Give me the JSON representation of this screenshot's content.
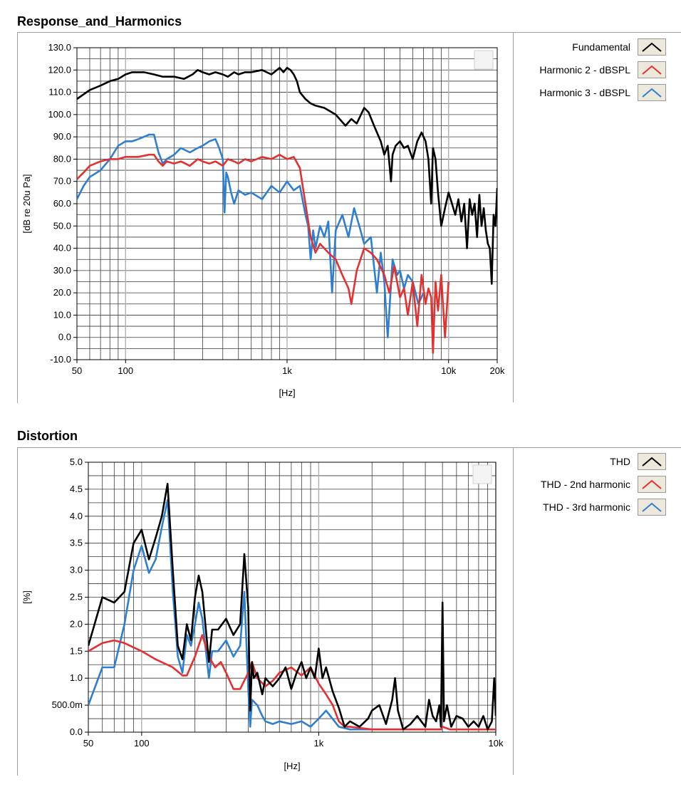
{
  "panels": [
    {
      "title": "Response_and_Harmonics",
      "ylabel": "[dB re 20u Pa]",
      "xlabel": "[Hz]",
      "legend": [
        {
          "label": "Fundamental",
          "color": "#000000"
        },
        {
          "label": "Harmonic 2 - dBSPL",
          "color": "#e53030"
        },
        {
          "label": "Harmonic 3 - dBSPL",
          "color": "#2f7fd0"
        }
      ]
    },
    {
      "title": "Distortion",
      "ylabel": "[%]",
      "xlabel": "[Hz]",
      "legend": [
        {
          "label": "THD",
          "color": "#000000"
        },
        {
          "label": "THD - 2nd harmonic",
          "color": "#e53030"
        },
        {
          "label": "THD - 3rd harmonic",
          "color": "#2f7fd0"
        }
      ]
    }
  ],
  "chart_data": [
    {
      "type": "line",
      "title": "Response_and_Harmonics",
      "xlabel": "[Hz]",
      "ylabel": "[dB re 20u Pa]",
      "x_scale": "log",
      "xlim": [
        50,
        20000
      ],
      "ylim": [
        -10,
        130
      ],
      "x_ticks": [
        50,
        100,
        1000,
        10000,
        20000
      ],
      "x_tick_labels": [
        "50",
        "100",
        "1k",
        "10k",
        "20k"
      ],
      "y_ticks": [
        -10,
        0,
        10,
        20,
        30,
        40,
        50,
        60,
        70,
        80,
        90,
        100,
        110,
        120,
        130
      ],
      "y_tick_labels": [
        "-10.0",
        "0.0",
        "10.0",
        "20.0",
        "30.0",
        "40.0",
        "50.0",
        "60.0",
        "70.0",
        "80.0",
        "90.0",
        "100.0",
        "110.0",
        "120.0",
        "130.0"
      ],
      "grid": true,
      "legend_position": "right",
      "series": [
        {
          "name": "Fundamental",
          "color": "#000000",
          "x": [
            50,
            60,
            70,
            80,
            90,
            100,
            110,
            130,
            150,
            170,
            200,
            230,
            260,
            280,
            300,
            330,
            360,
            400,
            430,
            470,
            500,
            550,
            600,
            700,
            800,
            900,
            950,
            1000,
            1050,
            1100,
            1150,
            1200,
            1300,
            1400,
            1500,
            1700,
            2000,
            2300,
            2500,
            2700,
            3000,
            3200,
            3500,
            3800,
            4000,
            4200,
            4400,
            4500,
            4700,
            5000,
            5300,
            5600,
            6000,
            6400,
            6800,
            7200,
            7500,
            7800,
            8000,
            8300,
            8600,
            9000,
            9500,
            10000,
            10500,
            11000,
            11500,
            12000,
            12500,
            13000,
            13500,
            14000,
            14500,
            15000,
            15500,
            16000,
            16500,
            17000,
            17500,
            18000,
            18500,
            19000,
            19500,
            20000
          ],
          "y": [
            107,
            111,
            113,
            115,
            116,
            118,
            119,
            119,
            118,
            117,
            117,
            116,
            118,
            120,
            119,
            118,
            119,
            118,
            117,
            119,
            118,
            119,
            119,
            120,
            118,
            121,
            119,
            121,
            120,
            118,
            115,
            110,
            107,
            105,
            104,
            103,
            100,
            95,
            98,
            96,
            103,
            101,
            94,
            88,
            82,
            86,
            70,
            82,
            86,
            88,
            85,
            86,
            80,
            88,
            92,
            88,
            80,
            60,
            85,
            80,
            65,
            50,
            58,
            65,
            60,
            55,
            62,
            52,
            60,
            40,
            62,
            55,
            60,
            45,
            64,
            50,
            58,
            48,
            42,
            40,
            24,
            55,
            50,
            67
          ]
        },
        {
          "name": "Harmonic 2 - dBSPL",
          "color": "#e53030",
          "x": [
            50,
            55,
            60,
            70,
            80,
            90,
            100,
            120,
            140,
            150,
            160,
            170,
            180,
            200,
            220,
            250,
            280,
            300,
            330,
            360,
            400,
            430,
            470,
            500,
            550,
            600,
            700,
            800,
            900,
            1000,
            1100,
            1200,
            1300,
            1400,
            1500,
            1600,
            1800,
            2000,
            2200,
            2400,
            2500,
            2700,
            3000,
            3300,
            3600,
            4000,
            4300,
            4600,
            5000,
            5300,
            5600,
            6000,
            6400,
            6800,
            7200,
            7500,
            7800,
            8000,
            8300,
            8600,
            9000,
            9500,
            10000
          ],
          "y": [
            71,
            74,
            77,
            79,
            80,
            80,
            81,
            81,
            82,
            82,
            79,
            77,
            79,
            78,
            79,
            77,
            80,
            79,
            78,
            79,
            77,
            80,
            79,
            78,
            80,
            79,
            81,
            80,
            82,
            80,
            81,
            76,
            60,
            45,
            38,
            42,
            38,
            35,
            28,
            22,
            15,
            30,
            40,
            38,
            35,
            28,
            20,
            32,
            18,
            22,
            10,
            25,
            5,
            28,
            15,
            22,
            18,
            -7,
            25,
            12,
            28,
            0,
            25
          ]
        },
        {
          "name": "Harmonic 3 - dBSPL",
          "color": "#2f7fd0",
          "x": [
            50,
            55,
            60,
            70,
            80,
            90,
            100,
            110,
            120,
            130,
            140,
            150,
            160,
            170,
            180,
            200,
            220,
            250,
            280,
            300,
            330,
            360,
            380,
            400,
            410,
            420,
            430,
            450,
            470,
            500,
            550,
            600,
            700,
            800,
            900,
            1000,
            1100,
            1200,
            1300,
            1350,
            1400,
            1450,
            1500,
            1600,
            1700,
            1800,
            1900,
            2000,
            2200,
            2400,
            2600,
            2800,
            3000,
            3300,
            3600,
            3800,
            4000,
            4200,
            4500,
            4800,
            5000,
            5300,
            5600,
            6000,
            6500,
            7000
          ],
          "y": [
            62,
            68,
            72,
            75,
            80,
            86,
            88,
            88,
            89,
            90,
            91,
            91,
            83,
            78,
            80,
            82,
            85,
            83,
            85,
            86,
            88,
            89,
            85,
            80,
            56,
            74,
            72,
            65,
            60,
            66,
            64,
            65,
            62,
            68,
            65,
            70,
            66,
            68,
            55,
            50,
            35,
            48,
            40,
            50,
            45,
            52,
            20,
            48,
            55,
            45,
            58,
            50,
            42,
            45,
            20,
            38,
            25,
            0,
            35,
            28,
            30,
            22,
            28,
            25,
            15,
            20
          ]
        }
      ]
    },
    {
      "type": "line",
      "title": "Distortion",
      "xlabel": "[Hz]",
      "ylabel": "[%]",
      "x_scale": "log",
      "xlim": [
        50,
        10000
      ],
      "ylim": [
        0,
        5
      ],
      "x_ticks": [
        50,
        100,
        1000,
        10000
      ],
      "x_tick_labels": [
        "50",
        "100",
        "1k",
        "10k"
      ],
      "y_ticks": [
        0,
        0.5,
        1,
        1.5,
        2,
        2.5,
        3,
        3.5,
        4,
        4.5,
        5
      ],
      "y_tick_labels": [
        "0.0",
        "500.0m",
        "1.0",
        "1.5",
        "2.0",
        "2.5",
        "3.0",
        "3.5",
        "4.0",
        "4.5",
        "5.0"
      ],
      "grid": true,
      "legend_position": "right",
      "series": [
        {
          "name": "THD",
          "color": "#000000",
          "x": [
            50,
            60,
            70,
            80,
            90,
            100,
            110,
            120,
            130,
            140,
            150,
            160,
            170,
            180,
            190,
            200,
            210,
            220,
            240,
            250,
            270,
            300,
            330,
            360,
            380,
            400,
            410,
            420,
            430,
            450,
            480,
            500,
            550,
            600,
            650,
            700,
            750,
            800,
            850,
            900,
            950,
            1000,
            1050,
            1100,
            1200,
            1300,
            1400,
            1500,
            1700,
            1900,
            2000,
            2200,
            2400,
            2600,
            2700,
            2800,
            3000,
            3300,
            3600,
            4000,
            4200,
            4400,
            4600,
            4800,
            4900,
            5000,
            5100,
            5300,
            5600,
            6000,
            6500,
            7000,
            7500,
            8000,
            8500,
            9000,
            9500,
            9800,
            10000
          ],
          "y": [
            1.6,
            2.5,
            2.4,
            2.6,
            3.5,
            3.75,
            3.2,
            3.6,
            4.0,
            4.6,
            3.0,
            1.6,
            1.35,
            2.0,
            1.7,
            2.5,
            2.9,
            2.6,
            1.3,
            1.9,
            1.9,
            2.1,
            1.8,
            2.0,
            3.3,
            2.3,
            0.4,
            1.3,
            1.0,
            1.1,
            0.7,
            1.0,
            0.85,
            1.0,
            1.2,
            0.8,
            1.1,
            1.3,
            1.0,
            1.2,
            1.0,
            1.55,
            1.0,
            1.2,
            0.75,
            0.45,
            0.1,
            0.2,
            0.1,
            0.25,
            0.4,
            0.5,
            0.15,
            0.6,
            1.0,
            0.4,
            0.05,
            0.15,
            0.3,
            0.1,
            0.6,
            0.3,
            0.2,
            0.5,
            0.1,
            2.4,
            0.2,
            0.5,
            0.1,
            0.3,
            0.25,
            0.1,
            0.2,
            0.1,
            0.3,
            0.05,
            0.2,
            1.0,
            0.3
          ]
        },
        {
          "name": "THD - 2nd harmonic",
          "color": "#e53030",
          "x": [
            50,
            60,
            70,
            80,
            100,
            120,
            150,
            170,
            180,
            200,
            220,
            240,
            260,
            280,
            300,
            330,
            360,
            400,
            420,
            450,
            500,
            550,
            600,
            700,
            800,
            900,
            1000,
            1100,
            1200,
            1300,
            1400,
            1500,
            2000,
            3000,
            4000,
            4500,
            4900,
            5000,
            5500,
            6000,
            7000,
            8000,
            9000,
            10000
          ],
          "y": [
            1.5,
            1.65,
            1.7,
            1.65,
            1.5,
            1.35,
            1.2,
            1.05,
            1.05,
            1.4,
            1.8,
            1.4,
            1.2,
            1.3,
            1.1,
            0.8,
            0.8,
            1.1,
            1.3,
            1.0,
            0.85,
            0.95,
            1.1,
            1.2,
            1.05,
            1.2,
            0.9,
            0.7,
            0.5,
            0.2,
            0.1,
            0.1,
            0.05,
            0.05,
            0.05,
            0.05,
            0.05,
            0.1,
            0.05,
            0.05,
            0.05,
            0.05,
            0.05,
            0.05
          ]
        },
        {
          "name": "THD - 3rd harmonic",
          "color": "#2f7fd0",
          "x": [
            50,
            60,
            70,
            80,
            90,
            100,
            110,
            120,
            130,
            140,
            150,
            160,
            170,
            180,
            190,
            200,
            210,
            220,
            240,
            250,
            270,
            300,
            330,
            360,
            380,
            400,
            410,
            420,
            450,
            480,
            500,
            550,
            600,
            700,
            800,
            900,
            1000,
            1100,
            1300,
            1500,
            2000,
            3000,
            4000,
            5000
          ],
          "y": [
            0.5,
            1.2,
            1.2,
            2.0,
            3.0,
            3.45,
            2.95,
            3.2,
            3.8,
            4.3,
            2.6,
            1.4,
            1.1,
            1.8,
            1.6,
            2.0,
            2.4,
            2.1,
            1.0,
            1.5,
            1.5,
            1.7,
            1.4,
            1.6,
            2.6,
            0.8,
            0.1,
            0.6,
            0.5,
            0.3,
            0.2,
            0.15,
            0.2,
            0.15,
            0.2,
            0.1,
            0.25,
            0.4,
            0.1,
            0.05,
            0.05,
            0.05,
            0.05,
            0.05
          ]
        }
      ]
    }
  ]
}
